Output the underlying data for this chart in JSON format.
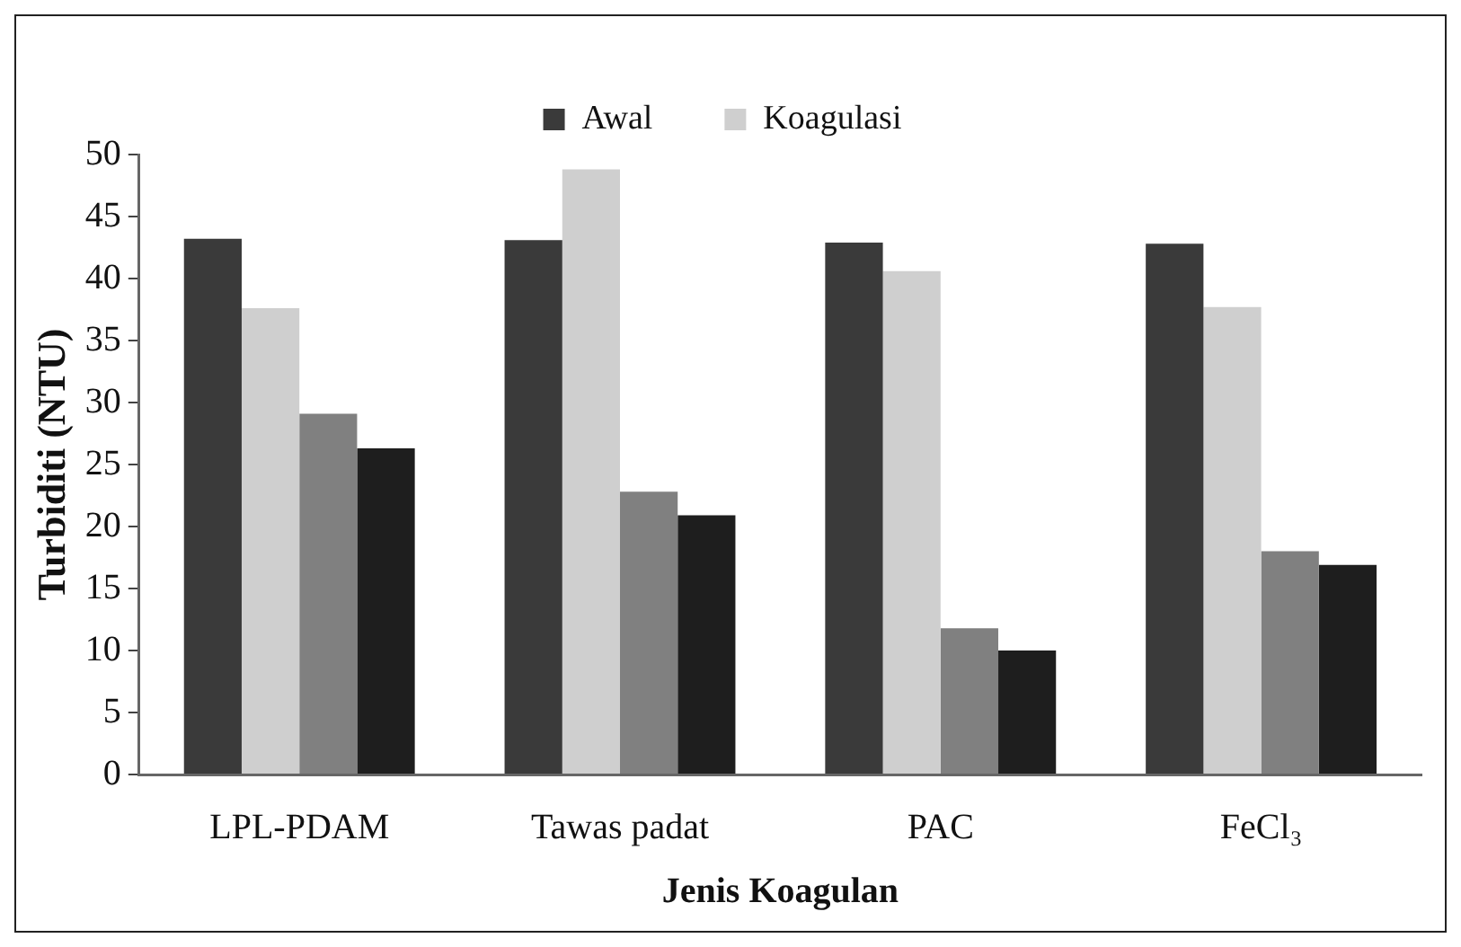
{
  "chart_data": {
    "type": "bar",
    "xlabel": "Jenis Koagulan",
    "ylabel": "Turbiditi (NTU)",
    "categories": [
      "LPL-PDAM",
      "Tawas padat",
      "PAC",
      "FeCl₃"
    ],
    "series": [
      {
        "name": "Awal",
        "color": "#3a3a3a",
        "values": [
          43.2,
          43.1,
          42.9,
          42.8
        ]
      },
      {
        "name": "Koagulasi",
        "color": "#cfcfcf",
        "values": [
          37.6,
          48.8,
          40.6,
          37.7
        ]
      },
      {
        "color": "#808080",
        "values": [
          29.1,
          22.8,
          11.8,
          18.0
        ]
      },
      {
        "color": "#1e1e1e",
        "values": [
          26.3,
          20.9,
          10.0,
          16.9
        ]
      }
    ],
    "ylim": [
      0,
      50
    ],
    "yticks": [
      0,
      5,
      10,
      15,
      20,
      25,
      30,
      35,
      40,
      45,
      50
    ],
    "grid": false,
    "legend": "top"
  }
}
